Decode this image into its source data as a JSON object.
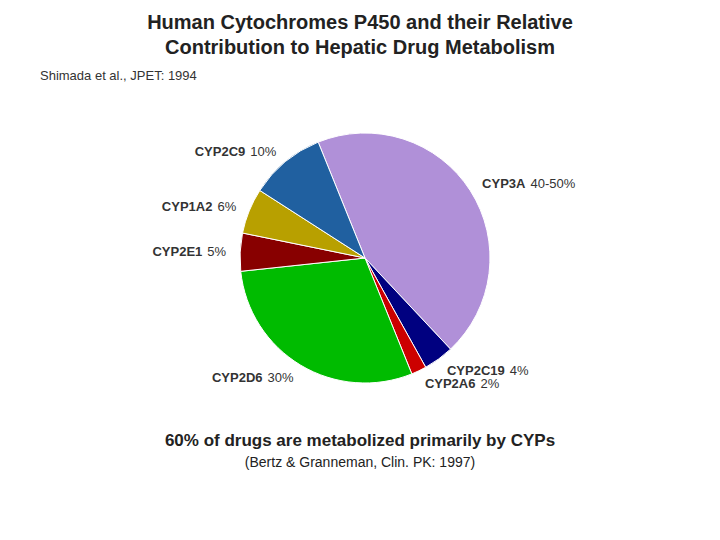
{
  "chart_data": {
    "type": "pie",
    "title": "Human Cytochromes P450 and their Relative\nContribution to Hepatic Drug Metabolism",
    "subtitle": "Shimada et al., JPET: 1994",
    "categories": [
      "CYP3A",
      "CYP2C19",
      "CYP2A6",
      "CYP2D6",
      "CYP2E1",
      "CYP1A2",
      "CYP2C9"
    ],
    "values": [
      45,
      4,
      2,
      30,
      5,
      6,
      10
    ],
    "value_labels": [
      "40-50%",
      "4%",
      "2%",
      "30%",
      "5%",
      "6%",
      "10%"
    ],
    "colors": [
      "#b090d8",
      "#000080",
      "#cc0000",
      "#00bb00",
      "#880000",
      "#b8a000",
      "#2060a0"
    ],
    "data_labels": true,
    "annotations": [
      "60% of drugs are metabolized primarily by CYPs",
      "(Bertz & Granneman, Clin. PK: 1997)"
    ]
  }
}
